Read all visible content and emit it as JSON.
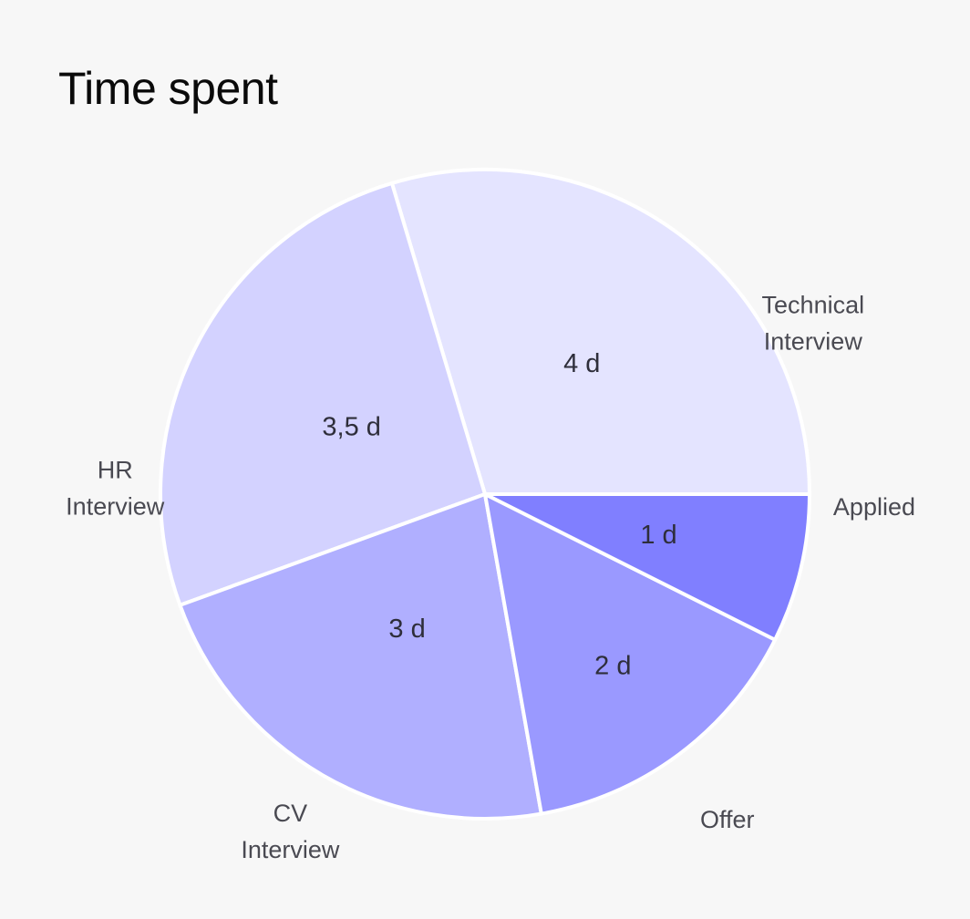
{
  "title": "Time spent",
  "chart_data": {
    "type": "pie",
    "title": "Time spent",
    "slices": [
      {
        "category": [
          "Technical",
          "Interview"
        ],
        "value": 4,
        "value_label": "4 d",
        "color": "#e4e4ff"
      },
      {
        "category": [
          "HR",
          "Interview"
        ],
        "value": 3.5,
        "value_label": "3,5 d",
        "color": "#d3d2ff"
      },
      {
        "category": [
          "CV",
          "Interview"
        ],
        "value": 3,
        "value_label": "3 d",
        "color": "#b0afff"
      },
      {
        "category": [
          "Offer"
        ],
        "value": 2,
        "value_label": "2 d",
        "color": "#9a99ff"
      },
      {
        "category": [
          "Applied"
        ],
        "value": 1,
        "value_label": "1 d",
        "color": "#807fff"
      }
    ]
  }
}
